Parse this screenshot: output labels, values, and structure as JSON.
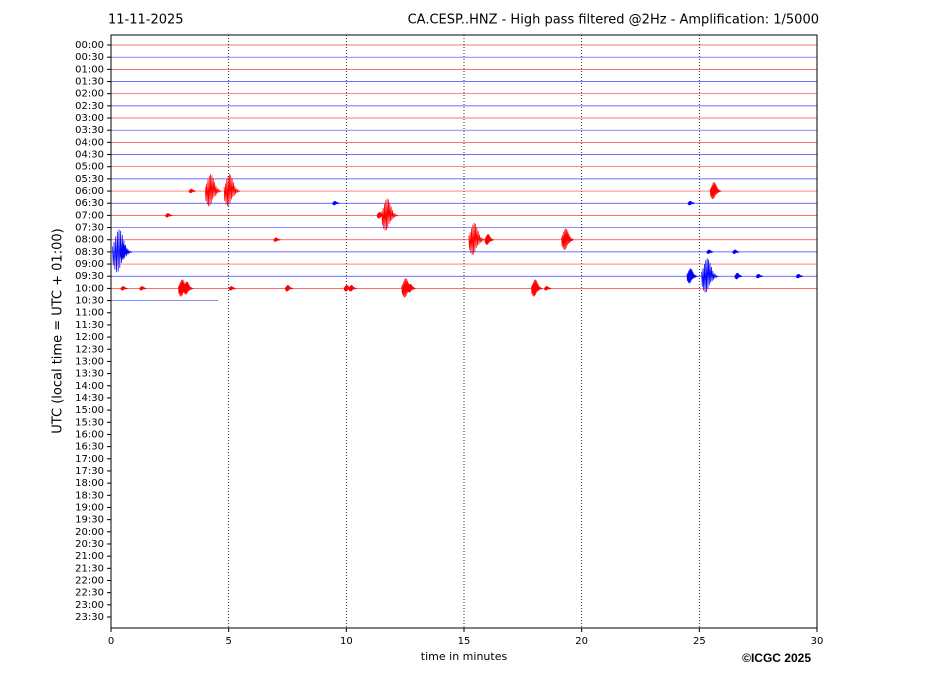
{
  "chart_data": {
    "type": "helicorder",
    "date": "11-11-2025",
    "title": "CA.CESP..HNZ - High pass filtered @2Hz - Amplification: 1/5000",
    "xlabel": "time in minutes",
    "ylabel": "UTC (local time = UTC + 01:00)",
    "credit": "©ICGC 2025",
    "xlim": [
      0,
      30
    ],
    "xticks": [
      0,
      5,
      10,
      15,
      20,
      25,
      30
    ],
    "grid": true,
    "categories": [
      "00:00",
      "00:30",
      "01:00",
      "01:30",
      "02:00",
      "02:30",
      "03:00",
      "03:30",
      "04:00",
      "04:30",
      "05:00",
      "05:30",
      "06:00",
      "06:30",
      "07:00",
      "07:30",
      "08:00",
      "08:30",
      "09:00",
      "09:30",
      "10:00",
      "10:30",
      "11:00",
      "11:30",
      "12:00",
      "12:30",
      "13:00",
      "13:30",
      "14:00",
      "14:30",
      "15:00",
      "15:30",
      "16:00",
      "16:30",
      "17:00",
      "17:30",
      "18:00",
      "18:30",
      "19:00",
      "19:30",
      "20:00",
      "20:30",
      "21:00",
      "21:30",
      "22:00",
      "22:30",
      "23:00",
      "23:30"
    ],
    "traces": [
      {
        "color": "#ff0000",
        "end": 30,
        "events": []
      },
      {
        "color": "#0000ff",
        "end": 30,
        "events": []
      },
      {
        "color": "#ff0000",
        "end": 30,
        "events": []
      },
      {
        "color": "#0000ff",
        "end": 30,
        "events": []
      },
      {
        "color": "#ff0000",
        "end": 30,
        "events": []
      },
      {
        "color": "#0000ff",
        "end": 30,
        "events": []
      },
      {
        "color": "#ff0000",
        "end": 30,
        "events": []
      },
      {
        "color": "#0000ff",
        "end": 30,
        "events": []
      },
      {
        "color": "#ff0000",
        "end": 30,
        "events": []
      },
      {
        "color": "#0000ff",
        "end": 30,
        "events": []
      },
      {
        "color": "#ff0000",
        "end": 30,
        "events": []
      },
      {
        "color": "#0000ff",
        "end": 30,
        "events": []
      },
      {
        "color": "#ff0000",
        "end": 30,
        "events": [
          {
            "x": 3.4,
            "amp": 0.2
          },
          {
            "x": 4.2,
            "amp": 1.5
          },
          {
            "x": 5.0,
            "amp": 1.5
          },
          {
            "x": 25.6,
            "amp": 0.8
          }
        ]
      },
      {
        "color": "#0000ff",
        "end": 30,
        "events": [
          {
            "x": 9.5,
            "amp": 0.2
          },
          {
            "x": 24.6,
            "amp": 0.2
          }
        ]
      },
      {
        "color": "#ff0000",
        "end": 30,
        "events": [
          {
            "x": 2.4,
            "amp": 0.2
          },
          {
            "x": 11.4,
            "amp": 0.3
          },
          {
            "x": 11.7,
            "amp": 1.5
          }
        ]
      },
      {
        "color": "#0000ff",
        "end": 30,
        "events": []
      },
      {
        "color": "#ff0000",
        "end": 30,
        "events": [
          {
            "x": 7.0,
            "amp": 0.2
          },
          {
            "x": 15.4,
            "amp": 1.5
          },
          {
            "x": 16.0,
            "amp": 0.5
          },
          {
            "x": 19.3,
            "amp": 1.0
          }
        ]
      },
      {
        "color": "#0000ff",
        "end": 30,
        "events": [
          {
            "x": 0.3,
            "amp": 2.0
          },
          {
            "x": 0.5,
            "amp": 0.7
          },
          {
            "x": 25.4,
            "amp": 0.2
          },
          {
            "x": 26.5,
            "amp": 0.2
          }
        ]
      },
      {
        "color": "#ff0000",
        "end": 30,
        "events": []
      },
      {
        "color": "#0000ff",
        "end": 30,
        "events": [
          {
            "x": 24.6,
            "amp": 0.7
          },
          {
            "x": 25.3,
            "amp": 1.6
          },
          {
            "x": 26.6,
            "amp": 0.3
          },
          {
            "x": 27.5,
            "amp": 0.2
          },
          {
            "x": 29.2,
            "amp": 0.2
          }
        ]
      },
      {
        "color": "#ff0000",
        "end": 30,
        "events": [
          {
            "x": 0.5,
            "amp": 0.2
          },
          {
            "x": 1.3,
            "amp": 0.2
          },
          {
            "x": 3.0,
            "amp": 0.8
          },
          {
            "x": 3.2,
            "amp": 0.6
          },
          {
            "x": 5.1,
            "amp": 0.2
          },
          {
            "x": 7.5,
            "amp": 0.3
          },
          {
            "x": 10.0,
            "amp": 0.3
          },
          {
            "x": 10.2,
            "amp": 0.3
          },
          {
            "x": 12.5,
            "amp": 0.9
          },
          {
            "x": 12.7,
            "amp": 0.4
          },
          {
            "x": 18.0,
            "amp": 0.8
          },
          {
            "x": 18.5,
            "amp": 0.2
          }
        ]
      },
      {
        "color": "#0000ff",
        "end": 4.55,
        "events": []
      }
    ]
  }
}
